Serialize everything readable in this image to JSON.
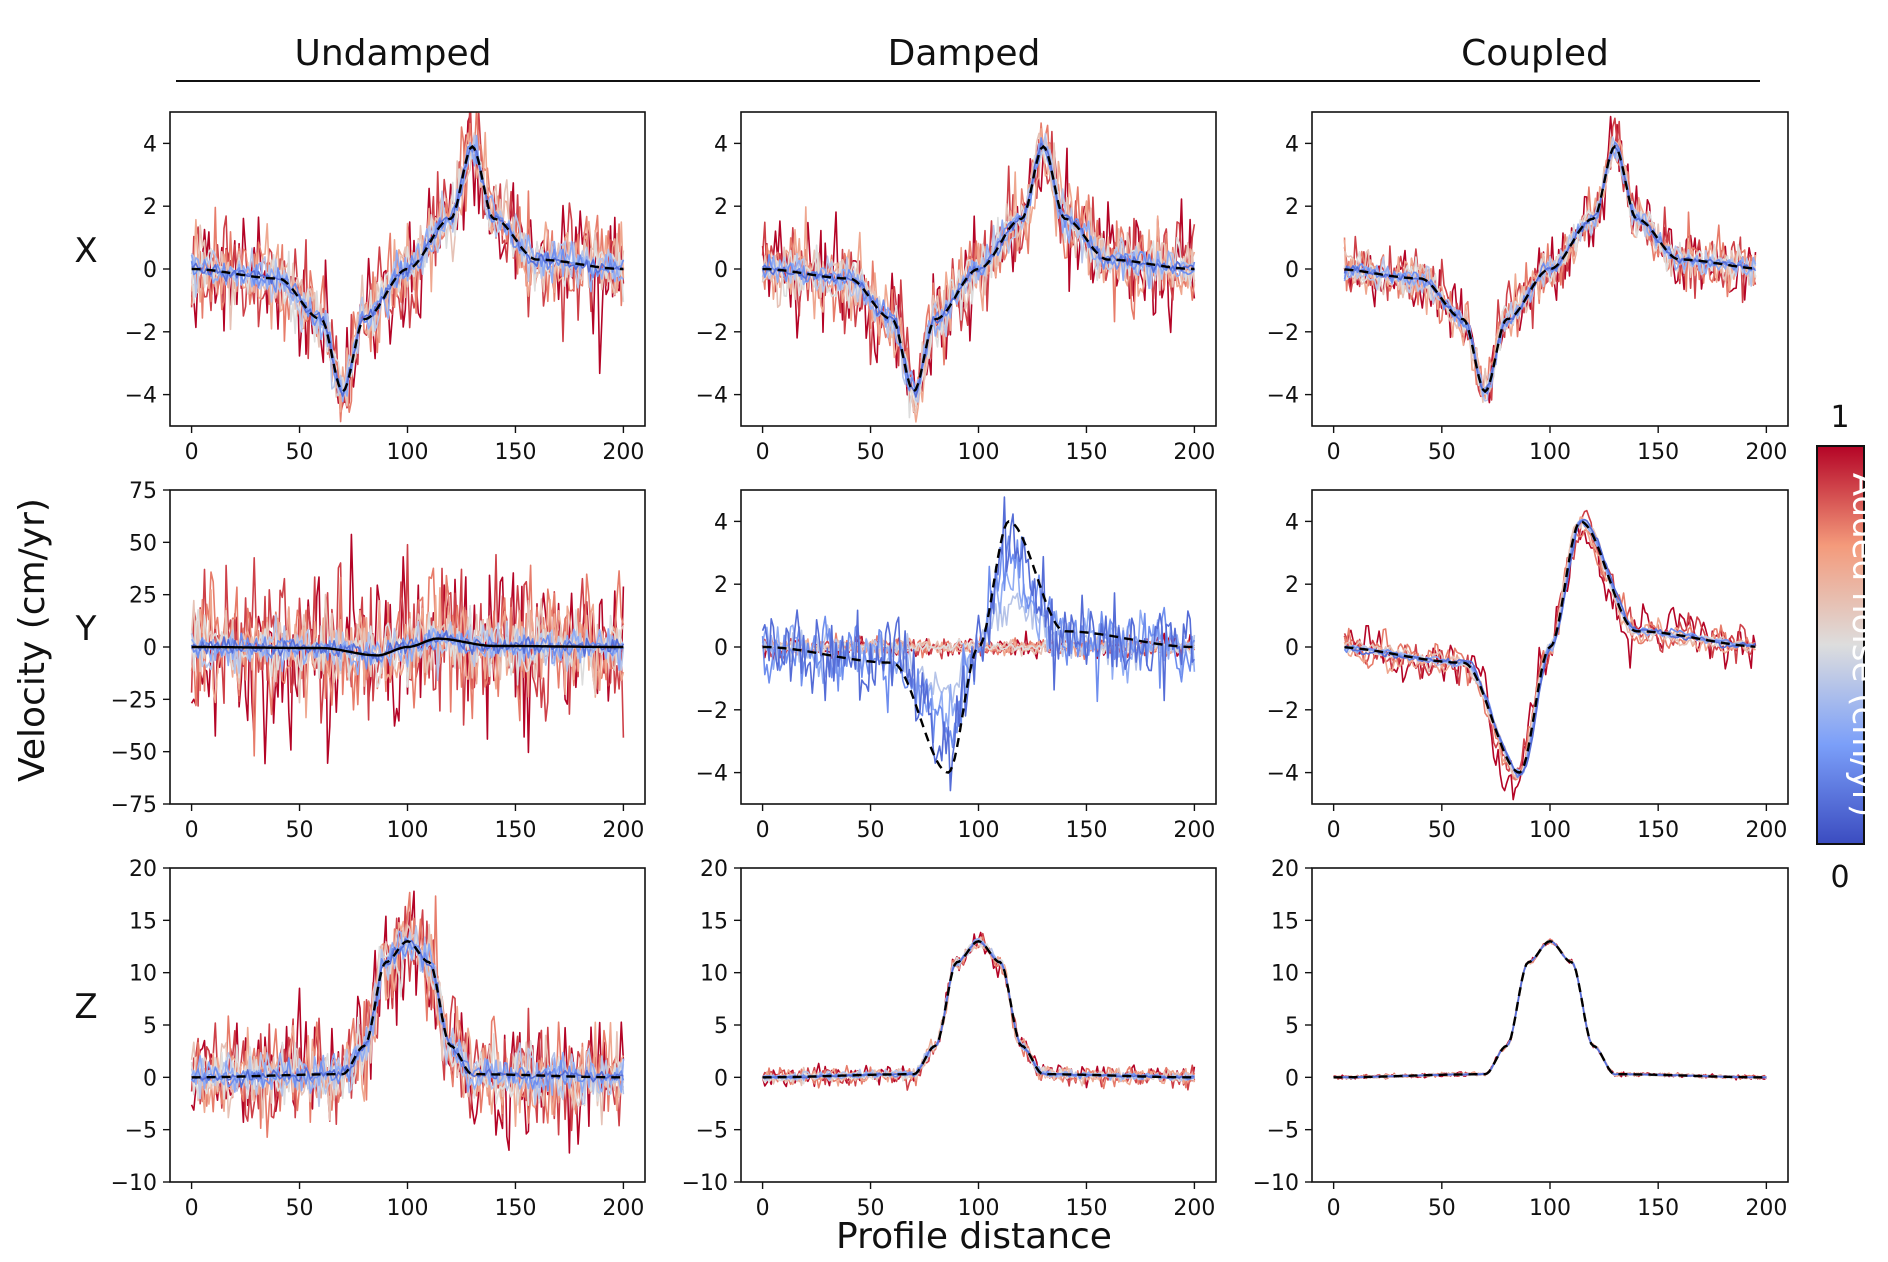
{
  "figure": {
    "column_titles": [
      "Undamped",
      "Damped",
      "Coupled"
    ],
    "row_labels": [
      "X",
      "Y",
      "Z"
    ],
    "xlabel": "Profile distance",
    "ylabel": "Velocity (cm/yr)"
  },
  "colorbar": {
    "label": "Added noise (cm/yr)",
    "max_label": "1",
    "min_label": "0",
    "colormap": "coolwarm",
    "color_low": "#3b4cc0",
    "color_mid": "#dddddd",
    "color_high": "#b40426"
  },
  "chart_data": [
    {
      "id": "x-undamped",
      "type": "line",
      "row": "X",
      "column": "Undamped",
      "xlim": [
        -10,
        210
      ],
      "ylim": [
        -5,
        5
      ],
      "xticks": [
        0,
        50,
        100,
        150,
        200
      ],
      "yticks": [
        -4,
        -2,
        0,
        2,
        4
      ],
      "ytick_labels": [
        "−4",
        "−2",
        "0",
        "2",
        "4"
      ],
      "true_signal": {
        "x": [
          0,
          40,
          60,
          70,
          80,
          100,
          120,
          130,
          140,
          160,
          200
        ],
        "y": [
          0,
          -0.3,
          -1.6,
          -3.9,
          -1.6,
          0,
          1.6,
          3.9,
          1.6,
          0.3,
          0
        ],
        "style": "black dashed"
      },
      "noise_levels": [
        0.1,
        0.2,
        0.3,
        0.4,
        0.5,
        0.6,
        0.7,
        0.8,
        0.9,
        1.0
      ],
      "x_range": [
        0,
        200
      ],
      "x_step": 1
    },
    {
      "id": "x-damped",
      "type": "line",
      "row": "X",
      "column": "Damped",
      "xlim": [
        -10,
        210
      ],
      "ylim": [
        -5,
        5
      ],
      "xticks": [
        0,
        50,
        100,
        150,
        200
      ],
      "yticks": [
        -4,
        -2,
        0,
        2,
        4
      ],
      "ytick_labels": [
        "−4",
        "−2",
        "0",
        "2",
        "4"
      ],
      "true_signal": {
        "x": [
          0,
          40,
          60,
          70,
          80,
          100,
          120,
          130,
          140,
          160,
          200
        ],
        "y": [
          0,
          -0.3,
          -1.6,
          -3.9,
          -1.6,
          0,
          1.6,
          3.9,
          1.6,
          0.3,
          0
        ],
        "style": "black dashed"
      },
      "noise_levels": [
        0.1,
        0.2,
        0.3,
        0.4,
        0.5,
        0.6,
        0.7,
        0.8,
        0.9,
        1.0
      ],
      "x_range": [
        0,
        200
      ],
      "x_step": 1
    },
    {
      "id": "x-coupled",
      "type": "line",
      "row": "X",
      "column": "Coupled",
      "xlim": [
        -10,
        210
      ],
      "ylim": [
        -5,
        5
      ],
      "xticks": [
        0,
        50,
        100,
        150,
        200
      ],
      "yticks": [
        -4,
        -2,
        0,
        2,
        4
      ],
      "ytick_labels": [
        "−4",
        "−2",
        "0",
        "2",
        "4"
      ],
      "true_signal": {
        "x": [
          0,
          40,
          60,
          70,
          80,
          100,
          120,
          130,
          140,
          160,
          200
        ],
        "y": [
          0,
          -0.3,
          -1.6,
          -3.9,
          -1.6,
          0,
          1.6,
          3.9,
          1.6,
          0.3,
          0
        ],
        "style": "black dashed"
      },
      "noise_levels": [
        0.1,
        0.2,
        0.3,
        0.4,
        0.5,
        0.6,
        0.7,
        0.8,
        0.9,
        1.0
      ],
      "x_range": [
        5,
        195
      ],
      "x_step": 1
    },
    {
      "id": "y-undamped",
      "type": "line",
      "row": "Y",
      "column": "Undamped",
      "xlim": [
        -10,
        210
      ],
      "ylim": [
        -75,
        75
      ],
      "xticks": [
        0,
        50,
        100,
        150,
        200
      ],
      "yticks": [
        -75,
        -50,
        -25,
        0,
        25,
        50,
        75
      ],
      "ytick_labels": [
        "−75",
        "−50",
        "−25",
        "0",
        "25",
        "50",
        "75"
      ],
      "true_signal": {
        "x": [
          0,
          60,
          86,
          100,
          114,
          140,
          200
        ],
        "y": [
          0,
          -0.5,
          -4,
          0,
          4,
          0.5,
          0
        ],
        "style": "black solid"
      },
      "noise_levels": [
        0.1,
        0.2,
        0.3,
        0.4,
        0.5,
        0.6,
        0.7,
        0.8,
        0.9,
        1.0
      ],
      "x_range": [
        0,
        200
      ],
      "x_step": 1
    },
    {
      "id": "y-damped",
      "type": "line",
      "row": "Y",
      "column": "Damped",
      "xlim": [
        -10,
        210
      ],
      "ylim": [
        -5,
        5
      ],
      "xticks": [
        0,
        50,
        100,
        150,
        200
      ],
      "yticks": [
        -4,
        -2,
        0,
        2,
        4
      ],
      "ytick_labels": [
        "−4",
        "−2",
        "0",
        "2",
        "4"
      ],
      "true_signal": {
        "x": [
          0,
          60,
          86,
          100,
          114,
          140,
          200
        ],
        "y": [
          0,
          -0.5,
          -4,
          0,
          4,
          0.5,
          0
        ],
        "style": "black dashed"
      },
      "noise_levels": [
        0.1,
        0.2,
        0.3,
        0.4,
        0.5,
        0.6,
        0.7,
        0.8,
        0.9,
        1.0
      ],
      "x_range": [
        0,
        200
      ],
      "x_step": 1
    },
    {
      "id": "y-coupled",
      "type": "line",
      "row": "Y",
      "column": "Coupled",
      "xlim": [
        -10,
        210
      ],
      "ylim": [
        -5,
        5
      ],
      "xticks": [
        0,
        50,
        100,
        150,
        200
      ],
      "yticks": [
        -4,
        -2,
        0,
        2,
        4
      ],
      "ytick_labels": [
        "−4",
        "−2",
        "0",
        "2",
        "4"
      ],
      "true_signal": {
        "x": [
          0,
          60,
          86,
          100,
          114,
          140,
          200
        ],
        "y": [
          0,
          -0.5,
          -4,
          0,
          4,
          0.5,
          0
        ],
        "style": "black dashed"
      },
      "noise_levels": [
        0.1,
        0.2,
        0.3,
        0.4,
        0.5,
        0.6,
        0.7,
        0.8,
        0.9,
        1.0
      ],
      "x_range": [
        5,
        195
      ],
      "x_step": 1
    },
    {
      "id": "z-undamped",
      "type": "line",
      "row": "Z",
      "column": "Undamped",
      "xlim": [
        -10,
        210
      ],
      "ylim": [
        -10,
        20
      ],
      "xticks": [
        0,
        50,
        100,
        150,
        200
      ],
      "yticks": [
        -10,
        -5,
        0,
        5,
        10,
        15,
        20
      ],
      "ytick_labels": [
        "−10",
        "−5",
        "0",
        "5",
        "10",
        "15",
        "20"
      ],
      "true_signal": {
        "x": [
          0,
          70,
          80,
          90,
          100,
          110,
          120,
          130,
          200
        ],
        "y": [
          0,
          0.3,
          3,
          11,
          13,
          11,
          3,
          0.3,
          0
        ],
        "style": "black dashed"
      },
      "noise_levels": [
        0.1,
        0.2,
        0.3,
        0.4,
        0.5,
        0.6,
        0.7,
        0.8,
        0.9,
        1.0
      ],
      "x_range": [
        0,
        200
      ],
      "x_step": 1
    },
    {
      "id": "z-damped",
      "type": "line",
      "row": "Z",
      "column": "Damped",
      "xlim": [
        -10,
        210
      ],
      "ylim": [
        -10,
        20
      ],
      "xticks": [
        0,
        50,
        100,
        150,
        200
      ],
      "yticks": [
        -10,
        -5,
        0,
        5,
        10,
        15,
        20
      ],
      "ytick_labels": [
        "−10",
        "−5",
        "0",
        "5",
        "10",
        "15",
        "20"
      ],
      "true_signal": {
        "x": [
          0,
          70,
          80,
          90,
          100,
          110,
          120,
          130,
          200
        ],
        "y": [
          0,
          0.3,
          3,
          11,
          13,
          11,
          3,
          0.3,
          0
        ],
        "style": "black dashed"
      },
      "noise_levels": [
        0.1,
        0.2,
        0.3,
        0.4,
        0.5,
        0.6,
        0.7,
        0.8,
        0.9,
        1.0
      ],
      "x_range": [
        0,
        200
      ],
      "x_step": 1
    },
    {
      "id": "z-coupled",
      "type": "line",
      "row": "Z",
      "column": "Coupled",
      "xlim": [
        -10,
        210
      ],
      "ylim": [
        -10,
        20
      ],
      "xticks": [
        0,
        50,
        100,
        150,
        200
      ],
      "yticks": [
        -10,
        -5,
        0,
        5,
        10,
        15,
        20
      ],
      "ytick_labels": [
        "−10",
        "−5",
        "0",
        "5",
        "10",
        "15",
        "20"
      ],
      "true_signal": {
        "x": [
          0,
          70,
          80,
          90,
          100,
          110,
          120,
          130,
          200
        ],
        "y": [
          0,
          0.3,
          3,
          11,
          13,
          11,
          3,
          0.3,
          0
        ],
        "style": "black dashed"
      },
      "noise_levels": [
        0.1,
        0.2,
        0.3,
        0.4,
        0.5,
        0.6,
        0.7,
        0.8,
        0.9,
        1.0
      ],
      "x_range": [
        0,
        200
      ],
      "x_step": 1
    }
  ]
}
